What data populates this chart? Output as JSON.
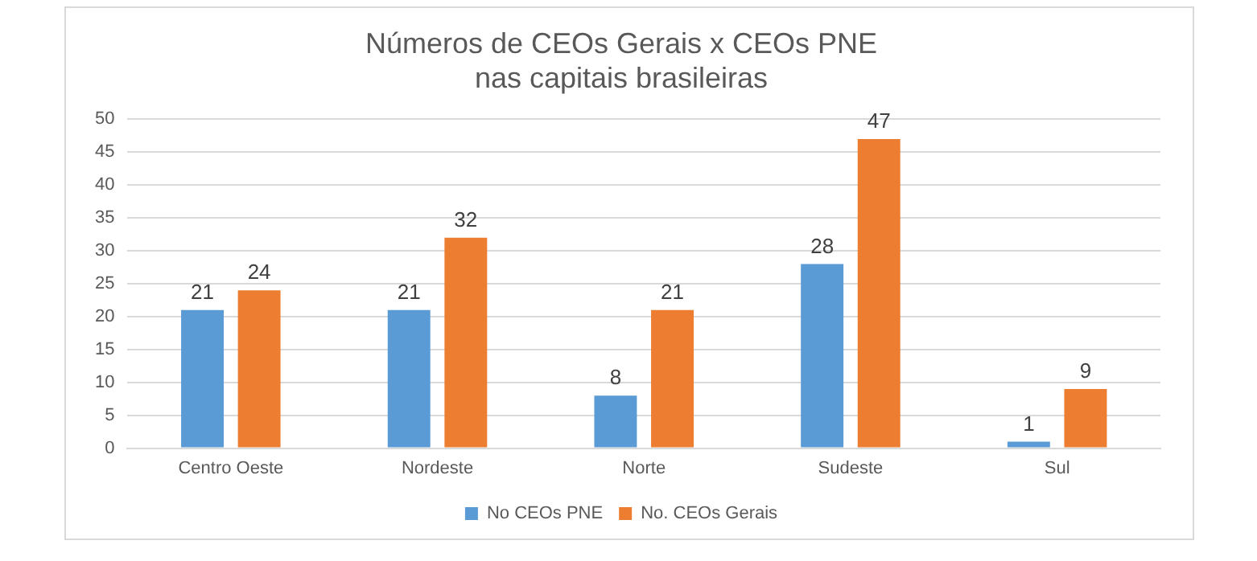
{
  "chart_data": {
    "type": "bar",
    "title": "Números de CEOs Gerais x CEOs PNE\nnas capitais brasileiras",
    "categories": [
      "Centro Oeste",
      "Nordeste",
      "Norte",
      "Sudeste",
      "Sul"
    ],
    "series": [
      {
        "name": "No CEOs PNE",
        "color": "#5b9bd5",
        "values": [
          21,
          21,
          8,
          28,
          1
        ]
      },
      {
        "name": "No. CEOs Gerais",
        "color": "#ed7d31",
        "values": [
          24,
          32,
          21,
          47,
          9
        ]
      }
    ],
    "ylim": [
      0,
      50
    ],
    "yticks": [
      0,
      5,
      10,
      15,
      20,
      25,
      30,
      35,
      40,
      45,
      50
    ],
    "grid": "y",
    "legend": "bottom",
    "data_labels": true
  }
}
